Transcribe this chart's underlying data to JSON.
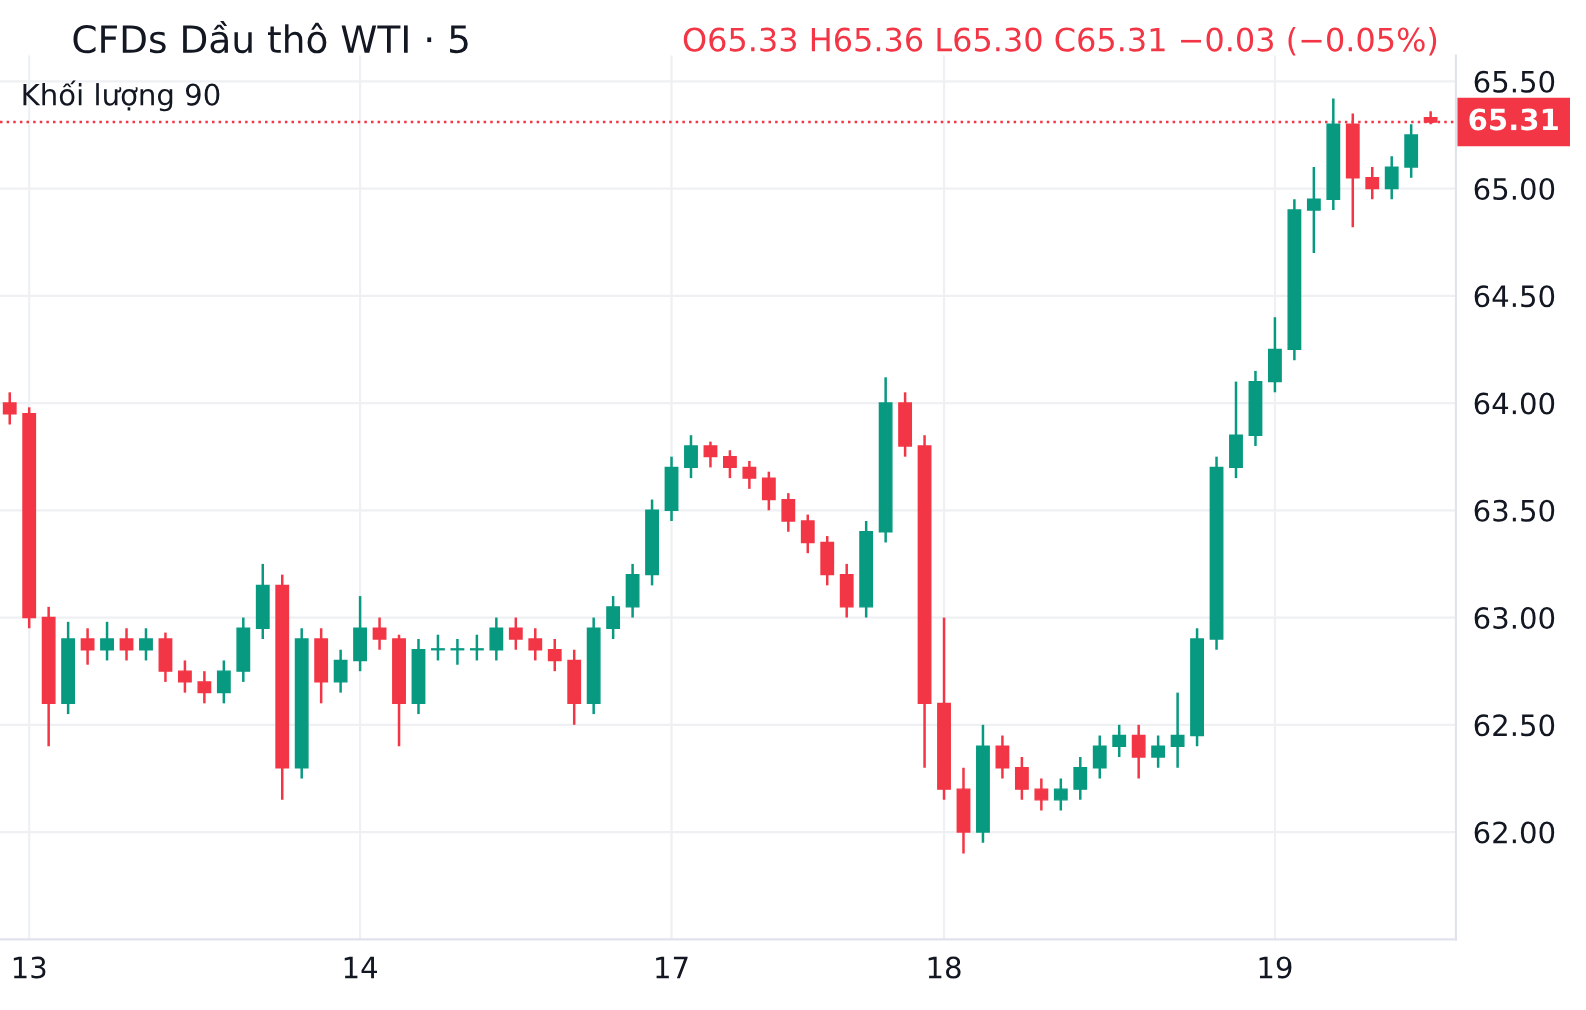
{
  "chart_data": {
    "type": "candlestick",
    "title": "CFDs Dầu thô WTI · 5",
    "subtitle": "O65.33 H65.36 L65.30 C65.31 −0.03 (−0.05%)",
    "annotations": [
      "Khối lượng 90"
    ],
    "categories": [
      null,
      "13",
      null,
      null,
      null,
      null,
      null,
      null,
      null,
      null,
      null,
      null,
      null,
      null,
      null,
      null,
      null,
      null,
      "14",
      null,
      null,
      null,
      null,
      null,
      null,
      null,
      null,
      null,
      null,
      null,
      null,
      null,
      null,
      null,
      "17",
      null,
      null,
      null,
      null,
      null,
      null,
      null,
      null,
      null,
      null,
      null,
      null,
      null,
      "18",
      null,
      null,
      null,
      null,
      null,
      null,
      null,
      null,
      null,
      null,
      null,
      null,
      null,
      null,
      null,
      null,
      "19",
      null,
      null,
      null,
      null,
      null,
      null,
      null,
      null
    ],
    "ohlc": [
      [
        64.0,
        64.05,
        63.9,
        63.95
      ],
      [
        63.95,
        63.98,
        62.95,
        63.0
      ],
      [
        63.0,
        63.05,
        62.4,
        62.6
      ],
      [
        62.6,
        62.98,
        62.55,
        62.9
      ],
      [
        62.9,
        62.95,
        62.78,
        62.85
      ],
      [
        62.85,
        62.98,
        62.8,
        62.9
      ],
      [
        62.9,
        62.95,
        62.8,
        62.85
      ],
      [
        62.85,
        62.95,
        62.8,
        62.9
      ],
      [
        62.9,
        62.93,
        62.7,
        62.75
      ],
      [
        62.75,
        62.8,
        62.65,
        62.7
      ],
      [
        62.7,
        62.75,
        62.6,
        62.65
      ],
      [
        62.65,
        62.8,
        62.6,
        62.75
      ],
      [
        62.75,
        63.0,
        62.7,
        62.95
      ],
      [
        62.95,
        63.25,
        62.9,
        63.15
      ],
      [
        63.15,
        63.2,
        62.15,
        62.3
      ],
      [
        62.3,
        62.95,
        62.25,
        62.9
      ],
      [
        62.9,
        62.95,
        62.6,
        62.7
      ],
      [
        62.7,
        62.85,
        62.65,
        62.8
      ],
      [
        62.8,
        63.1,
        62.75,
        62.95
      ],
      [
        62.95,
        63.0,
        62.85,
        62.9
      ],
      [
        62.9,
        62.92,
        62.4,
        62.6
      ],
      [
        62.6,
        62.9,
        62.55,
        62.85
      ],
      [
        62.85,
        62.92,
        62.8,
        62.85
      ],
      [
        62.85,
        62.9,
        62.78,
        62.85
      ],
      [
        62.85,
        62.92,
        62.8,
        62.85
      ],
      [
        62.85,
        63.0,
        62.8,
        62.95
      ],
      [
        62.95,
        63.0,
        62.85,
        62.9
      ],
      [
        62.9,
        62.95,
        62.8,
        62.85
      ],
      [
        62.85,
        62.9,
        62.75,
        62.8
      ],
      [
        62.8,
        62.85,
        62.5,
        62.6
      ],
      [
        62.6,
        63.0,
        62.55,
        62.95
      ],
      [
        62.95,
        63.1,
        62.9,
        63.05
      ],
      [
        63.05,
        63.25,
        63.0,
        63.2
      ],
      [
        63.2,
        63.55,
        63.15,
        63.5
      ],
      [
        63.5,
        63.75,
        63.45,
        63.7
      ],
      [
        63.7,
        63.85,
        63.65,
        63.8
      ],
      [
        63.8,
        63.82,
        63.7,
        63.75
      ],
      [
        63.75,
        63.78,
        63.65,
        63.7
      ],
      [
        63.7,
        63.73,
        63.6,
        63.65
      ],
      [
        63.65,
        63.68,
        63.5,
        63.55
      ],
      [
        63.55,
        63.58,
        63.4,
        63.45
      ],
      [
        63.45,
        63.48,
        63.3,
        63.35
      ],
      [
        63.35,
        63.38,
        63.15,
        63.2
      ],
      [
        63.2,
        63.25,
        63.0,
        63.05
      ],
      [
        63.05,
        63.45,
        63.0,
        63.4
      ],
      [
        63.4,
        64.12,
        63.35,
        64.0
      ],
      [
        64.0,
        64.05,
        63.75,
        63.8
      ],
      [
        63.8,
        63.85,
        62.3,
        62.6
      ],
      [
        62.6,
        63.0,
        62.15,
        62.2
      ],
      [
        62.2,
        62.3,
        61.9,
        62.0
      ],
      [
        62.0,
        62.5,
        61.95,
        62.4
      ],
      [
        62.4,
        62.45,
        62.25,
        62.3
      ],
      [
        62.3,
        62.35,
        62.15,
        62.2
      ],
      [
        62.2,
        62.25,
        62.1,
        62.15
      ],
      [
        62.15,
        62.25,
        62.1,
        62.2
      ],
      [
        62.2,
        62.35,
        62.15,
        62.3
      ],
      [
        62.3,
        62.45,
        62.25,
        62.4
      ],
      [
        62.4,
        62.5,
        62.35,
        62.45
      ],
      [
        62.45,
        62.5,
        62.25,
        62.35
      ],
      [
        62.35,
        62.45,
        62.3,
        62.4
      ],
      [
        62.4,
        62.65,
        62.3,
        62.45
      ],
      [
        62.45,
        62.95,
        62.4,
        62.9
      ],
      [
        62.9,
        63.75,
        62.85,
        63.7
      ],
      [
        63.7,
        64.1,
        63.65,
        63.85
      ],
      [
        63.85,
        64.15,
        63.8,
        64.1
      ],
      [
        64.1,
        64.4,
        64.05,
        64.25
      ],
      [
        64.25,
        64.95,
        64.2,
        64.9
      ],
      [
        64.9,
        65.1,
        64.7,
        64.95
      ],
      [
        64.95,
        65.42,
        64.9,
        65.3
      ],
      [
        65.3,
        65.35,
        64.82,
        65.05
      ],
      [
        65.05,
        65.1,
        64.95,
        65.0
      ],
      [
        65.0,
        65.15,
        64.95,
        65.1
      ],
      [
        65.1,
        65.3,
        65.05,
        65.25
      ],
      [
        65.33,
        65.36,
        65.3,
        65.31
      ]
    ],
    "colors": [
      "#f23645",
      "#f23645",
      "#f23645",
      "#089981",
      "#f23645",
      "#089981",
      "#f23645",
      "#089981",
      "#f23645",
      "#f23645",
      "#f23645",
      "#089981",
      "#089981",
      "#089981",
      "#f23645",
      "#089981",
      "#f23645",
      "#089981",
      "#089981",
      "#f23645",
      "#f23645",
      "#089981",
      "#089981",
      "#089981",
      "#089981",
      "#089981",
      "#f23645",
      "#f23645",
      "#f23645",
      "#f23645",
      "#089981",
      "#089981",
      "#089981",
      "#089981",
      "#089981",
      "#089981",
      "#f23645",
      "#f23645",
      "#f23645",
      "#f23645",
      "#f23645",
      "#f23645",
      "#f23645",
      "#f23645",
      "#089981",
      "#089981",
      "#f23645",
      "#f23645",
      "#f23645",
      "#f23645",
      "#089981",
      "#f23645",
      "#f23645",
      "#f23645",
      "#089981",
      "#089981",
      "#089981",
      "#089981",
      "#f23645",
      "#089981",
      "#089981",
      "#089981",
      "#089981",
      "#089981",
      "#089981",
      "#089981",
      "#089981",
      "#089981",
      "#089981",
      "#f23645",
      "#f23645",
      "#089981",
      "#089981",
      "#f23645"
    ],
    "ylim": [
      61.5,
      65.62
    ],
    "yticks": [
      {
        "value": 62,
        "label": "62.00"
      },
      {
        "value": 62.5,
        "label": "62.50"
      },
      {
        "value": 63,
        "label": "63.00"
      },
      {
        "value": 63.5,
        "label": "63.50"
      },
      {
        "value": 64,
        "label": "64.00"
      },
      {
        "value": 64.5,
        "label": "64.50"
      },
      {
        "value": 65,
        "label": "65.00"
      },
      {
        "value": 65.5,
        "label": "65.50"
      }
    ],
    "ref_lines": [
      {
        "axis": "y",
        "value": 65.31,
        "label": "65.31",
        "color": "#f23645",
        "line_style": "dotted"
      }
    ],
    "grid": true
  }
}
